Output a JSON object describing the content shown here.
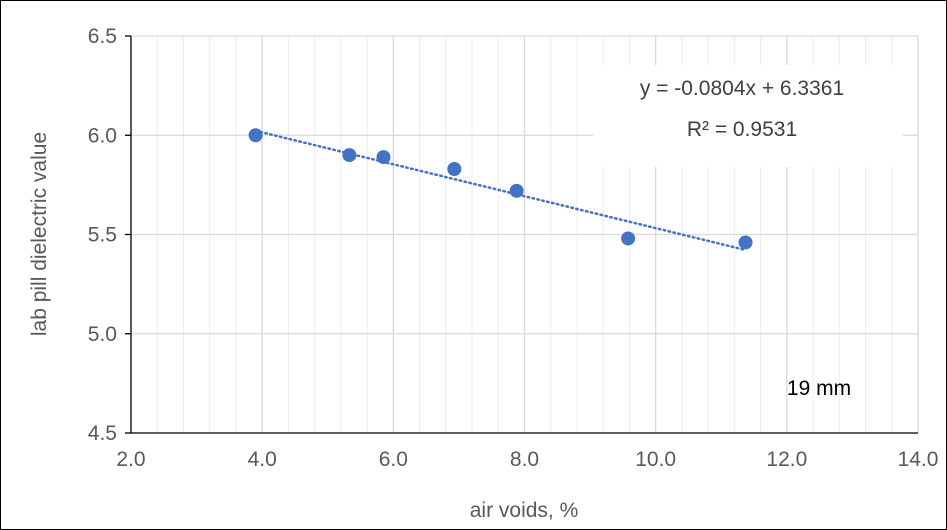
{
  "chart_data": {
    "type": "scatter",
    "title": "",
    "xlabel": "air voids, %",
    "ylabel": "lab pill dielectric value",
    "xlim": [
      2.0,
      14.0
    ],
    "ylim": [
      4.5,
      6.5
    ],
    "x_ticks": [
      2.0,
      4.0,
      6.0,
      8.0,
      10.0,
      12.0,
      14.0
    ],
    "x_tick_labels": [
      "2.0",
      "4.0",
      "6.0",
      "8.0",
      "10.0",
      "12.0",
      "14.0"
    ],
    "y_ticks": [
      4.5,
      5.0,
      5.5,
      6.0,
      6.5
    ],
    "y_tick_labels": [
      "4.5",
      "5.0",
      "5.5",
      "6.0",
      "6.5"
    ],
    "x_minor_step": 0.4,
    "grid": true,
    "points": [
      {
        "x": 3.9,
        "y": 6.0
      },
      {
        "x": 5.33,
        "y": 5.9
      },
      {
        "x": 5.85,
        "y": 5.89
      },
      {
        "x": 6.93,
        "y": 5.83
      },
      {
        "x": 7.88,
        "y": 5.72
      },
      {
        "x": 9.58,
        "y": 5.48
      },
      {
        "x": 11.37,
        "y": 5.46
      }
    ],
    "trendline": {
      "type": "linear",
      "slope": -0.0804,
      "intercept": 6.3361,
      "x_range": [
        3.9,
        11.37
      ],
      "equation": "y = -0.0804x + 6.3361",
      "r_squared": "R² = 0.9531"
    },
    "annotations": [
      "19 mm"
    ],
    "colors": {
      "marker": "#4472C4",
      "grid": "#D9D9D9",
      "axis": "#000000"
    }
  }
}
